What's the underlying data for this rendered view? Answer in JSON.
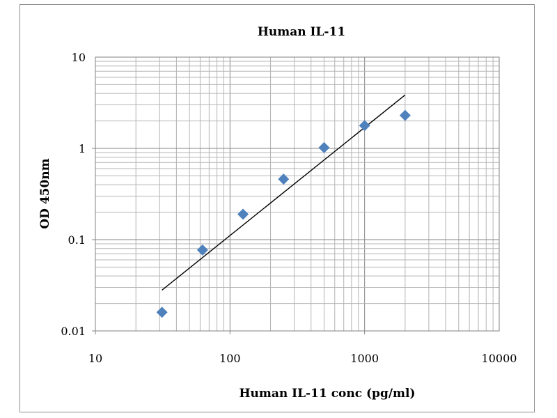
{
  "chart_data": {
    "type": "scatter",
    "title": "Human IL-11",
    "xlabel": "Human IL-11 conc (pg/ml)",
    "ylabel": "OD 450nm",
    "x_scale": "log",
    "y_scale": "log",
    "xlim": [
      10,
      10000
    ],
    "ylim": [
      0.01,
      10
    ],
    "x_ticks": [
      "10",
      "100",
      "1000",
      "10000"
    ],
    "y_ticks": [
      "0.01",
      "0.1",
      "1",
      "10"
    ],
    "grid": true,
    "legend": "none",
    "marker": "diamond",
    "marker_color": "#4f81bd",
    "series": [
      {
        "x": [
          31.25,
          62.5,
          125,
          250,
          500,
          1000,
          2000
        ],
        "y": [
          0.016,
          0.077,
          0.19,
          0.46,
          1.02,
          1.78,
          2.3
        ]
      }
    ],
    "trendline": {
      "type": "power",
      "color": "#000000",
      "x": [
        31.25,
        2000
      ],
      "y": [
        0.028,
        3.85
      ]
    }
  }
}
